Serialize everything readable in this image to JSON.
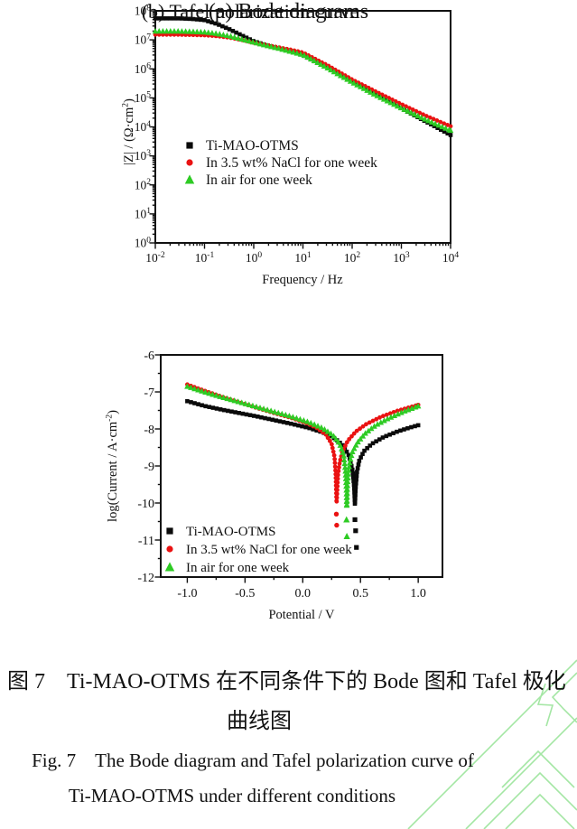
{
  "page": {
    "background": "#ffffff",
    "text_color": "#111111"
  },
  "watermark": {
    "name": "green-geometric-pattern",
    "color": "#a4e6a4"
  },
  "captions": {
    "panel_a": "(a) Bode diagrams",
    "panel_b": "(b) Tafel polarization curve",
    "figure_cn_line1": "图 7　Ti-MAO-OTMS 在不同条件下的 Bode 图和 Tafel 极化",
    "figure_cn_line2": "曲线图",
    "figure_en_line1": "Fig. 7　The Bode diagram and Tafel polarization curve of",
    "figure_en_line2": "Ti-MAO-OTMS under different conditions"
  },
  "chart_data": [
    {
      "type": "scatter",
      "id": "bode",
      "title": "(a) Bode diagrams",
      "xlabel": "Frequency / Hz",
      "ylabel": "|Z| / (Ω·cm²)",
      "ylabel_parts": [
        [
          "text",
          "|Z| / (Ω·cm"
        ],
        [
          "sup",
          "2"
        ],
        [
          "text",
          ")"
        ]
      ],
      "x_scale": "log",
      "y_scale": "log",
      "x_range_log": [
        -2,
        4
      ],
      "y_range_log": [
        0,
        8
      ],
      "x_tick_exponents": [
        -2,
        -1,
        0,
        1,
        2,
        3,
        4
      ],
      "y_tick_exponents": [
        0,
        1,
        2,
        3,
        4,
        5,
        6,
        7,
        8
      ],
      "grid": false,
      "legend_position": "inside-left-middle",
      "series": [
        {
          "name": "Ti-MAO-OTMS",
          "color": "#0a0a0a",
          "marker": "square",
          "points_log": [
            [
              -2,
              7.74
            ],
            [
              -1.5,
              7.74
            ],
            [
              -1.25,
              7.72
            ],
            [
              -1,
              7.68
            ],
            [
              -0.75,
              7.55
            ],
            [
              -0.5,
              7.37
            ],
            [
              -0.25,
              7.16
            ],
            [
              0,
              6.95
            ],
            [
              0.25,
              6.82
            ],
            [
              0.5,
              6.72
            ],
            [
              0.75,
              6.6
            ],
            [
              1,
              6.47
            ],
            [
              1.5,
              6.02
            ],
            [
              2,
              5.56
            ],
            [
              2.5,
              5.1
            ],
            [
              3,
              4.64
            ],
            [
              3.5,
              4.18
            ],
            [
              4,
              3.72
            ]
          ]
        },
        {
          "name": "In 3.5 wt% NaCl for one week",
          "color": "#ea1212",
          "marker": "circle",
          "points_log": [
            [
              -2,
              7.18
            ],
            [
              -1.5,
              7.18
            ],
            [
              -1,
              7.16
            ],
            [
              -0.75,
              7.13
            ],
            [
              -0.5,
              7.08
            ],
            [
              -0.25,
              7.0
            ],
            [
              0,
              6.9
            ],
            [
              0.25,
              6.82
            ],
            [
              0.5,
              6.74
            ],
            [
              0.75,
              6.66
            ],
            [
              1,
              6.56
            ],
            [
              1.5,
              6.12
            ],
            [
              2,
              5.63
            ],
            [
              2.5,
              5.2
            ],
            [
              3,
              4.78
            ],
            [
              3.5,
              4.38
            ],
            [
              4,
              4.02
            ]
          ]
        },
        {
          "name": "In air for one week",
          "color": "#2ecb24",
          "marker": "triangle",
          "points_log": [
            [
              -2,
              7.3
            ],
            [
              -1.5,
              7.3
            ],
            [
              -1,
              7.27
            ],
            [
              -0.75,
              7.22
            ],
            [
              -0.5,
              7.14
            ],
            [
              -0.25,
              7.03
            ],
            [
              0,
              6.92
            ],
            [
              0.25,
              6.81
            ],
            [
              0.5,
              6.71
            ],
            [
              0.75,
              6.6
            ],
            [
              1,
              6.49
            ],
            [
              1.5,
              6.03
            ],
            [
              2,
              5.54
            ],
            [
              2.5,
              5.08
            ],
            [
              3,
              4.65
            ],
            [
              3.5,
              4.25
            ],
            [
              4,
              3.88
            ]
          ]
        }
      ]
    },
    {
      "type": "scatter",
      "id": "tafel",
      "title": "(b) Tafel polarization curve",
      "xlabel": "Potential / V",
      "ylabel": "log(Current / A·cm⁻²)",
      "ylabel_parts": [
        [
          "text",
          "log(Current / A·cm"
        ],
        [
          "sup",
          "-2"
        ],
        [
          "text",
          ")"
        ]
      ],
      "x_scale": "linear",
      "y_scale": "linear",
      "xlim": [
        -1.23,
        1.21
      ],
      "ylim": [
        -12,
        -6
      ],
      "x_ticks": {
        "values": [
          -1.0,
          -0.5,
          0.0,
          0.5,
          1.0
        ],
        "labels": [
          "-1.0",
          "-0.5",
          "0.0",
          "0.5",
          "1.0"
        ]
      },
      "x_minor_values": [
        -0.75,
        -0.25,
        0.25,
        0.75
      ],
      "y_ticks": {
        "values": [
          -6,
          -7,
          -8,
          -9,
          -10,
          -11,
          -12
        ],
        "labels": [
          "-6",
          "-7",
          "-8",
          "-9",
          "-10",
          "-11",
          "-12"
        ]
      },
      "y_minor_values": [
        -6.5,
        -7.5,
        -8.5,
        -9.5,
        -10.5,
        -11.5
      ],
      "grid": false,
      "legend_position": "inside-left-bottom",
      "series": [
        {
          "name": "Ti-MAO-OTMS",
          "color": "#0a0a0a",
          "marker": "square",
          "corrosion_potential_V": 0.45,
          "points": [
            [
              -1.0,
              -7.25
            ],
            [
              -0.85,
              -7.38
            ],
            [
              -0.7,
              -7.48
            ],
            [
              -0.55,
              -7.57
            ],
            [
              -0.4,
              -7.66
            ],
            [
              -0.25,
              -7.76
            ],
            [
              -0.1,
              -7.86
            ],
            [
              0.05,
              -7.97
            ],
            [
              0.18,
              -8.1
            ],
            [
              0.28,
              -8.26
            ],
            [
              0.35,
              -8.45
            ],
            [
              0.4,
              -8.72
            ],
            [
              0.43,
              -9.1
            ],
            [
              0.445,
              -9.55
            ],
            [
              0.452,
              -10.05
            ],
            [
              0.458,
              -9.6
            ],
            [
              0.47,
              -9.15
            ],
            [
              0.49,
              -8.85
            ],
            [
              0.53,
              -8.6
            ],
            [
              0.6,
              -8.4
            ],
            [
              0.7,
              -8.22
            ],
            [
              0.82,
              -8.07
            ],
            [
              0.92,
              -7.97
            ],
            [
              1.0,
              -7.9
            ]
          ],
          "isolated_points": [
            [
              0.452,
              -10.45
            ],
            [
              0.458,
              -10.75
            ],
            [
              0.465,
              -11.2
            ]
          ]
        },
        {
          "name": "In 3.5 wt% NaCl for one week",
          "color": "#ea1212",
          "marker": "circle",
          "corrosion_potential_V": 0.29,
          "points": [
            [
              -1.0,
              -6.8
            ],
            [
              -0.85,
              -6.97
            ],
            [
              -0.7,
              -7.13
            ],
            [
              -0.55,
              -7.28
            ],
            [
              -0.4,
              -7.43
            ],
            [
              -0.25,
              -7.57
            ],
            [
              -0.1,
              -7.7
            ],
            [
              0.02,
              -7.83
            ],
            [
              0.12,
              -7.97
            ],
            [
              0.2,
              -8.15
            ],
            [
              0.25,
              -8.4
            ],
            [
              0.275,
              -8.75
            ],
            [
              0.285,
              -9.2
            ],
            [
              0.293,
              -10.0
            ],
            [
              0.298,
              -9.7
            ],
            [
              0.305,
              -9.25
            ],
            [
              0.32,
              -8.9
            ],
            [
              0.345,
              -8.6
            ],
            [
              0.39,
              -8.32
            ],
            [
              0.46,
              -8.07
            ],
            [
              0.55,
              -7.87
            ],
            [
              0.68,
              -7.67
            ],
            [
              0.82,
              -7.51
            ],
            [
              1.0,
              -7.35
            ]
          ],
          "isolated_points": [
            [
              0.291,
              -10.3
            ],
            [
              0.294,
              -10.6
            ]
          ]
        },
        {
          "name": "In air for one week",
          "color": "#2ecb24",
          "marker": "triangle",
          "corrosion_potential_V": 0.38,
          "points": [
            [
              -1.0,
              -6.85
            ],
            [
              -0.85,
              -7.0
            ],
            [
              -0.7,
              -7.14
            ],
            [
              -0.55,
              -7.27
            ],
            [
              -0.4,
              -7.4
            ],
            [
              -0.25,
              -7.53
            ],
            [
              -0.1,
              -7.66
            ],
            [
              0.05,
              -7.81
            ],
            [
              0.17,
              -7.97
            ],
            [
              0.26,
              -8.16
            ],
            [
              0.32,
              -8.4
            ],
            [
              0.355,
              -8.7
            ],
            [
              0.37,
              -9.15
            ],
            [
              0.378,
              -9.65
            ],
            [
              0.381,
              -10.1
            ],
            [
              0.386,
              -9.6
            ],
            [
              0.394,
              -9.2
            ],
            [
              0.407,
              -8.9
            ],
            [
              0.43,
              -8.62
            ],
            [
              0.47,
              -8.38
            ],
            [
              0.54,
              -8.12
            ],
            [
              0.63,
              -7.9
            ],
            [
              0.75,
              -7.7
            ],
            [
              0.88,
              -7.52
            ],
            [
              1.0,
              -7.38
            ]
          ],
          "isolated_points": [
            [
              0.379,
              -10.45
            ],
            [
              0.382,
              -10.9
            ]
          ]
        }
      ]
    }
  ]
}
